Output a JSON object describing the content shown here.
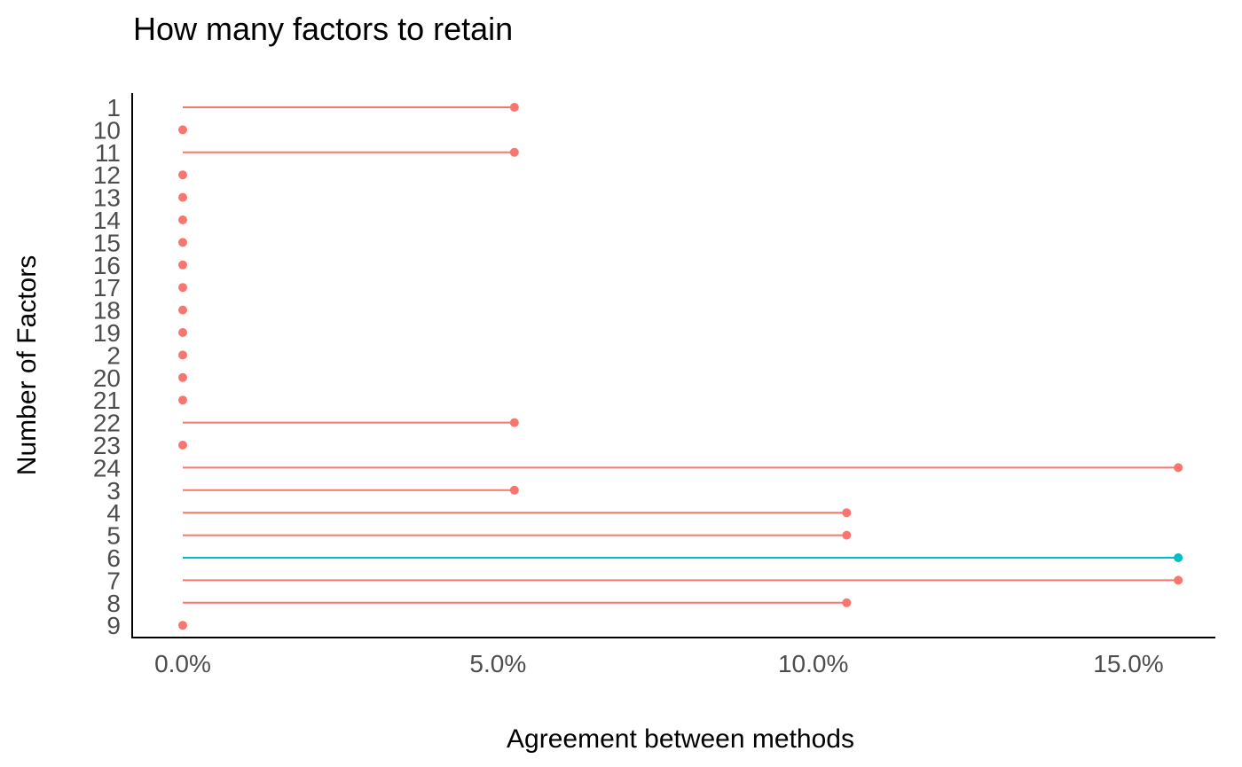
{
  "chart_data": {
    "type": "lollipop",
    "orientation": "horizontal",
    "title": "How many factors to retain",
    "xlabel": "Agreement between methods",
    "ylabel": "Number of Factors",
    "xlim": [
      0,
      0.16
    ],
    "x_ticks": [
      0,
      0.05,
      0.1,
      0.15
    ],
    "x_tick_labels": [
      "0.0%",
      "5.0%",
      "10.0%",
      "15.0%"
    ],
    "categories": [
      "1",
      "10",
      "11",
      "12",
      "13",
      "14",
      "15",
      "16",
      "17",
      "18",
      "19",
      "2",
      "20",
      "21",
      "22",
      "23",
      "24",
      "3",
      "4",
      "5",
      "6",
      "7",
      "8",
      "9"
    ],
    "values": [
      0.0526,
      0,
      0.0526,
      0,
      0,
      0,
      0,
      0,
      0,
      0,
      0,
      0,
      0,
      0,
      0.0526,
      0,
      0.1579,
      0.0526,
      0.1053,
      0.1053,
      0.1579,
      0.1579,
      0.1053,
      0
    ],
    "highlight": [
      "6"
    ],
    "grid": false,
    "legend": "none",
    "colors": {
      "default": "#F8766D",
      "highlight": "#00BFC4",
      "axis": "#000000"
    }
  }
}
